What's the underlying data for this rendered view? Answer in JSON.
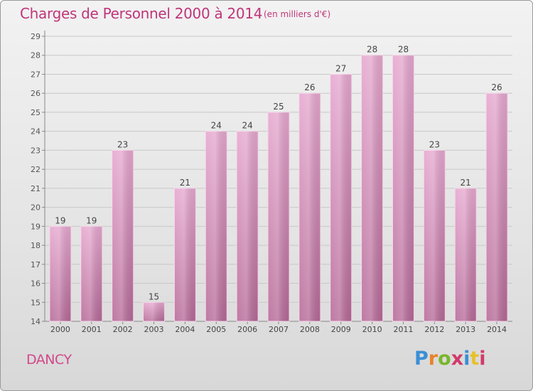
{
  "header": {
    "title": "Charges de Personnel 2000 à 2014",
    "subtitle": "(en milliers d'€)"
  },
  "footer": {
    "commune": "DANCY",
    "logo_text": "Proxiti",
    "logo_colors": [
      "#3a8fd6",
      "#e8832a",
      "#7ab52d",
      "#d23a6a",
      "#3a8fd6",
      "#e8c02a",
      "#d23a6a"
    ]
  },
  "colors": {
    "bar_fill_top": "#e6a8cf",
    "bar_fill_bottom": "#b66a98",
    "bar_stroke": "#f7d7ea",
    "title": "#c0357a",
    "grid": "#c8c8c8"
  },
  "chart_data": {
    "type": "bar",
    "categories": [
      "2000",
      "2001",
      "2002",
      "2003",
      "2004",
      "2005",
      "2006",
      "2007",
      "2008",
      "2009",
      "2010",
      "2011",
      "2012",
      "2013",
      "2014"
    ],
    "values": [
      19,
      19,
      23,
      15,
      21,
      24,
      24,
      25,
      26,
      27,
      28,
      28,
      23,
      21,
      26
    ],
    "data_labels": [
      "19",
      "19",
      "23",
      "15",
      "21",
      "24",
      "24",
      "25",
      "26",
      "27",
      "28",
      "28",
      "23",
      "21",
      "26"
    ],
    "y_ticks": [
      "14",
      "15",
      "16",
      "17",
      "18",
      "19",
      "20",
      "21",
      "22",
      "23",
      "24",
      "25",
      "26",
      "27",
      "28",
      "29"
    ],
    "ylim": [
      14,
      29
    ],
    "grid": true,
    "xlabel": "",
    "ylabel": ""
  }
}
